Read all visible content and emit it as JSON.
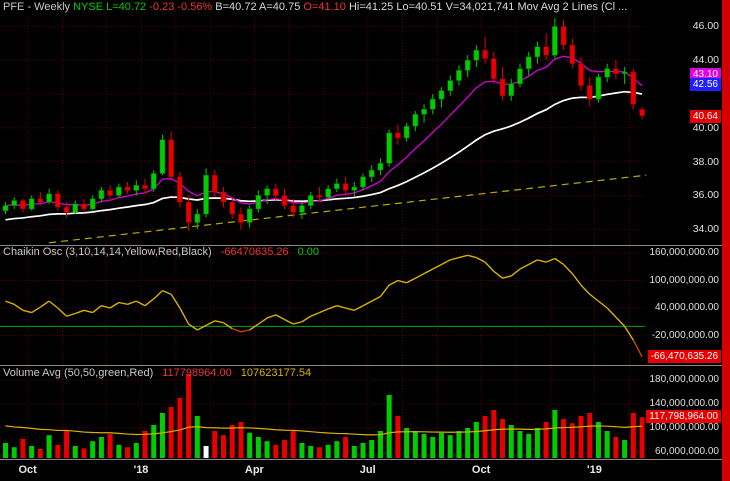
{
  "header": {
    "segments": [
      {
        "text": "PFE - Weekly ",
        "color": "#c8c8c8"
      },
      {
        "text": "NYSE ",
        "color": "#00cc00"
      },
      {
        "text": " L=40.72 ",
        "color": "#00cc00"
      },
      {
        "text": "-0.23 -0.56% ",
        "color": "#ee3333"
      },
      {
        "text": "B=40.72 A=40.75 ",
        "color": "#d8d8d8"
      },
      {
        "text": "O=41.10 ",
        "color": "#ee3333"
      },
      {
        "text": "Hi=41.25 Lo=40.51 V=34,021,741 ",
        "color": "#d8d8d8"
      },
      {
        "text": "Mov Avg 2 Lines (Cl ...",
        "color": "#d8d8d8"
      }
    ]
  },
  "legends": {
    "chaikin": {
      "label": "Chaikin Osc (3,10,14,14,Yellow,Red,Black)",
      "value": "-66470635.26",
      "zero": "0.00"
    },
    "volume": {
      "label": "Volume Avg (50,50,green,Red)",
      "value1": "117798964.00",
      "value2": "107623177.54"
    }
  },
  "colors": {
    "up": "#00cc00",
    "down": "#e60000",
    "up_border": "#007700",
    "down_border": "#880000",
    "ma_fast": "#d800d8",
    "ma_slow": "#ffffff",
    "trendline": "#b0b000",
    "grid": "#5a0000",
    "chaikin_line": "#d9b200",
    "chaikin_neg": "#cc4400",
    "zero_line": "#00a800",
    "volume_ma": "#d9b200",
    "white_bar": "#ffffff",
    "scroll_strip": "#d40000",
    "separator": "#888888",
    "axis_text": "#e0e0e0",
    "date_text": "#e8e8e8"
  },
  "chart_data": {
    "type": "candlestick",
    "symbol": "PFE",
    "timeframe": "Weekly",
    "exchange": "NYSE",
    "quote": {
      "last": "40.72",
      "change": "-0.23",
      "change_pct": "-0.56%",
      "bid": "40.72",
      "ask": "40.75",
      "open": "41.10",
      "high": "41.25",
      "low": "40.51",
      "volume": "34,021,741"
    },
    "candles": [
      [
        35.1,
        35.6,
        34.9,
        35.4
      ],
      [
        35.4,
        35.9,
        35.2,
        35.7
      ],
      [
        35.7,
        35.8,
        35.0,
        35.2
      ],
      [
        35.2,
        36.0,
        35.1,
        35.8
      ],
      [
        35.8,
        36.2,
        35.4,
        35.6
      ],
      [
        35.6,
        36.4,
        35.5,
        36.1
      ],
      [
        36.1,
        36.3,
        35.1,
        35.3
      ],
      [
        35.3,
        35.6,
        34.7,
        35.0
      ],
      [
        35.0,
        35.7,
        34.9,
        35.5
      ],
      [
        35.5,
        35.8,
        35.0,
        35.2
      ],
      [
        35.2,
        36.0,
        35.1,
        35.8
      ],
      [
        35.8,
        36.5,
        35.6,
        36.3
      ],
      [
        36.3,
        36.6,
        35.8,
        36.0
      ],
      [
        36.0,
        36.7,
        35.9,
        36.5
      ],
      [
        36.5,
        36.8,
        36.1,
        36.3
      ],
      [
        36.3,
        36.9,
        36.0,
        36.6
      ],
      [
        36.6,
        37.0,
        36.1,
        36.4
      ],
      [
        36.4,
        37.5,
        36.2,
        37.3
      ],
      [
        37.3,
        39.6,
        37.2,
        39.3
      ],
      [
        39.3,
        39.8,
        36.9,
        37.1
      ],
      [
        37.1,
        37.4,
        35.3,
        35.6
      ],
      [
        35.6,
        36.0,
        33.9,
        34.4
      ],
      [
        34.4,
        35.2,
        34.0,
        34.9
      ],
      [
        34.9,
        37.6,
        34.7,
        37.2
      ],
      [
        37.2,
        37.5,
        35.9,
        36.2
      ],
      [
        36.2,
        36.5,
        35.3,
        35.6
      ],
      [
        35.6,
        35.9,
        34.6,
        34.9
      ],
      [
        34.9,
        35.3,
        34.0,
        34.4
      ],
      [
        34.4,
        35.4,
        34.1,
        35.2
      ],
      [
        35.2,
        36.3,
        35.0,
        36.0
      ],
      [
        36.0,
        36.6,
        35.5,
        36.4
      ],
      [
        36.4,
        36.7,
        35.7,
        36.0
      ],
      [
        36.0,
        36.4,
        35.2,
        35.4
      ],
      [
        35.4,
        35.8,
        34.7,
        35.0
      ],
      [
        35.0,
        35.6,
        34.6,
        35.4
      ],
      [
        35.4,
        36.2,
        35.2,
        36.0
      ],
      [
        36.0,
        36.5,
        35.6,
        35.9
      ],
      [
        35.9,
        36.6,
        35.7,
        36.4
      ],
      [
        36.4,
        37.0,
        36.2,
        36.7
      ],
      [
        36.7,
        37.1,
        36.0,
        36.3
      ],
      [
        36.3,
        36.8,
        35.9,
        36.5
      ],
      [
        36.5,
        37.3,
        36.3,
        37.1
      ],
      [
        37.1,
        37.8,
        36.8,
        37.5
      ],
      [
        37.5,
        38.2,
        37.2,
        37.9
      ],
      [
        37.9,
        39.9,
        37.7,
        39.7
      ],
      [
        39.7,
        40.2,
        39.0,
        39.4
      ],
      [
        39.4,
        40.3,
        39.2,
        40.1
      ],
      [
        40.1,
        41.0,
        39.8,
        40.8
      ],
      [
        40.8,
        41.4,
        40.3,
        41.1
      ],
      [
        41.1,
        42.0,
        40.8,
        41.7
      ],
      [
        41.7,
        42.4,
        41.2,
        42.2
      ],
      [
        42.2,
        43.1,
        41.9,
        42.8
      ],
      [
        42.8,
        43.7,
        42.5,
        43.4
      ],
      [
        43.4,
        44.3,
        43.0,
        44.0
      ],
      [
        44.0,
        44.9,
        43.6,
        44.6
      ],
      [
        44.6,
        45.4,
        43.8,
        44.1
      ],
      [
        44.1,
        44.5,
        42.6,
        42.9
      ],
      [
        42.9,
        43.6,
        41.6,
        41.9
      ],
      [
        41.9,
        42.9,
        41.6,
        42.6
      ],
      [
        42.6,
        43.8,
        42.4,
        43.5
      ],
      [
        43.5,
        44.5,
        43.1,
        44.2
      ],
      [
        44.2,
        45.1,
        43.8,
        44.8
      ],
      [
        44.8,
        45.6,
        44.0,
        44.3
      ],
      [
        44.3,
        46.5,
        44.1,
        46.0
      ],
      [
        46.0,
        46.4,
        44.6,
        44.9
      ],
      [
        44.9,
        45.3,
        43.5,
        43.8
      ],
      [
        43.8,
        44.2,
        42.2,
        42.5
      ],
      [
        42.5,
        43.0,
        41.3,
        41.7
      ],
      [
        41.7,
        43.2,
        41.5,
        43.0
      ],
      [
        43.0,
        43.8,
        42.7,
        43.5
      ],
      [
        43.5,
        44.0,
        42.9,
        43.2
      ],
      [
        43.2,
        43.6,
        42.6,
        43.3
      ],
      [
        43.3,
        43.5,
        41.1,
        41.4
      ],
      [
        41.1,
        41.25,
        40.51,
        40.72
      ]
    ],
    "volume_millions": [
      75,
      68,
      82,
      70,
      65,
      88,
      72,
      95,
      70,
      66,
      78,
      85,
      90,
      72,
      68,
      75,
      95,
      105,
      125,
      135,
      150,
      190,
      120,
      70,
      95,
      88,
      105,
      110,
      92,
      85,
      78,
      72,
      80,
      95,
      75,
      70,
      68,
      72,
      78,
      85,
      70,
      75,
      80,
      95,
      155,
      120,
      100,
      95,
      90,
      85,
      92,
      88,
      95,
      100,
      110,
      120,
      130,
      115,
      105,
      95,
      90,
      100,
      110,
      130,
      115,
      108,
      120,
      125,
      110,
      95,
      85,
      80,
      125,
      118
    ],
    "volume_white_bar_week": 23,
    "chaikin_millions": [
      55,
      48,
      35,
      30,
      42,
      55,
      40,
      22,
      28,
      35,
      30,
      45,
      40,
      52,
      48,
      55,
      45,
      60,
      78,
      70,
      40,
      5,
      -8,
      2,
      12,
      8,
      -5,
      -12,
      -8,
      5,
      18,
      25,
      15,
      5,
      10,
      22,
      30,
      38,
      45,
      40,
      35,
      45,
      55,
      65,
      90,
      100,
      95,
      105,
      115,
      125,
      135,
      145,
      150,
      155,
      150,
      140,
      120,
      105,
      110,
      125,
      135,
      145,
      140,
      148,
      135,
      115,
      90,
      70,
      55,
      40,
      20,
      0,
      -30,
      -66.47
    ],
    "trendline": {
      "week1": 5,
      "price1": 33.2,
      "week2": 73.5,
      "price2": 37.2
    },
    "moving_averages": {
      "fast_period": 9,
      "slow_period": 30,
      "slow_seed": 34.5,
      "volume_period": 40,
      "volume_seed": 105
    },
    "price_axis": {
      "gridlines": [
        46,
        44,
        42,
        40,
        38,
        36,
        34
      ],
      "labels": [
        {
          "text": "46.00",
          "value": 46
        },
        {
          "text": "44.00",
          "value": 44
        },
        {
          "text": "40.00",
          "value": 40
        },
        {
          "text": "38.00",
          "value": 38
        },
        {
          "text": "36.00",
          "value": 36
        },
        {
          "text": "34.00",
          "value": 34
        }
      ],
      "highlights": [
        {
          "text": "43.10",
          "value": 43.1,
          "color": "#e000e0"
        },
        {
          "text": "42.56",
          "value": 42.56,
          "color": "#2020ff"
        },
        {
          "text": "40.64",
          "value": 40.64,
          "color": "#e60000"
        }
      ]
    },
    "chaikin_axis": {
      "gridlines": [
        160,
        100,
        40,
        -20
      ],
      "labels": [
        {
          "text": "160,000,000.00",
          "value": 160
        },
        {
          "text": "100,000,000.00",
          "value": 100
        },
        {
          "text": "40,000,000.00",
          "value": 40
        },
        {
          "text": "-20,000,000.00",
          "value": -20
        }
      ],
      "highlight": {
        "text": "-66,470,635.26",
        "value": -66.47,
        "color": "#e60000"
      }
    },
    "volume_axis": {
      "gridlines": [
        180,
        140,
        100,
        60
      ],
      "labels": [
        {
          "text": "180,000,000.00",
          "value": 180
        },
        {
          "text": "140,000,000.00",
          "value": 140
        },
        {
          "text": "100,000,000.00",
          "value": 100
        },
        {
          "text": "60,000,000.00",
          "value": 60
        }
      ],
      "highlight": {
        "text": "117,798,964.00",
        "value": 117.8,
        "color": "#e60000"
      }
    },
    "x_axis": {
      "labels": [
        {
          "text": "Oct",
          "week": 3
        },
        {
          "text": "'18",
          "week": 16
        },
        {
          "text": "Apr",
          "week": 29
        },
        {
          "text": "Jul",
          "week": 42
        },
        {
          "text": "Oct",
          "week": 55
        },
        {
          "text": "'19",
          "week": 68
        }
      ],
      "month_grid_weeks": [
        3,
        7,
        12,
        16,
        20,
        24,
        29,
        33,
        37,
        42,
        46,
        50,
        55,
        59,
        63,
        68,
        72
      ]
    }
  }
}
